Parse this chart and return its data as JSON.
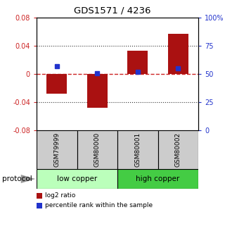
{
  "title": "GDS1571 / 4236",
  "samples": [
    "GSM79999",
    "GSM80000",
    "GSM80001",
    "GSM80002"
  ],
  "log2_ratio": [
    -0.028,
    -0.048,
    0.033,
    0.057
  ],
  "percentile_rank": [
    57,
    50.5,
    52,
    55
  ],
  "ylim_left": [
    -0.08,
    0.08
  ],
  "ylim_right": [
    0,
    100
  ],
  "yticks_left": [
    -0.08,
    -0.04,
    0,
    0.04,
    0.08
  ],
  "yticks_right": [
    0,
    25,
    50,
    75,
    100
  ],
  "yticklabels_left": [
    "-0.08",
    "-0.04",
    "0",
    "0.04",
    "0.08"
  ],
  "yticklabels_right": [
    "0",
    "25",
    "50",
    "75",
    "100%"
  ],
  "bar_color": "#aa1111",
  "dot_color": "#2233cc",
  "zero_line_color": "#cc2222",
  "dotted_line_color": "#333333",
  "groups": [
    {
      "label": "low copper",
      "color": "#bbffbb",
      "start": 0,
      "end": 2
    },
    {
      "label": "high copper",
      "color": "#44cc44",
      "start": 2,
      "end": 4
    }
  ],
  "legend_items": [
    {
      "label": "log2 ratio",
      "color": "#aa1111",
      "marker": "s"
    },
    {
      "label": "percentile rank within the sample",
      "color": "#2233cc",
      "marker": "s"
    }
  ],
  "protocol_label": "protocol",
  "sample_box_color": "#cccccc",
  "bar_width": 0.5,
  "bg_color": "#ffffff"
}
